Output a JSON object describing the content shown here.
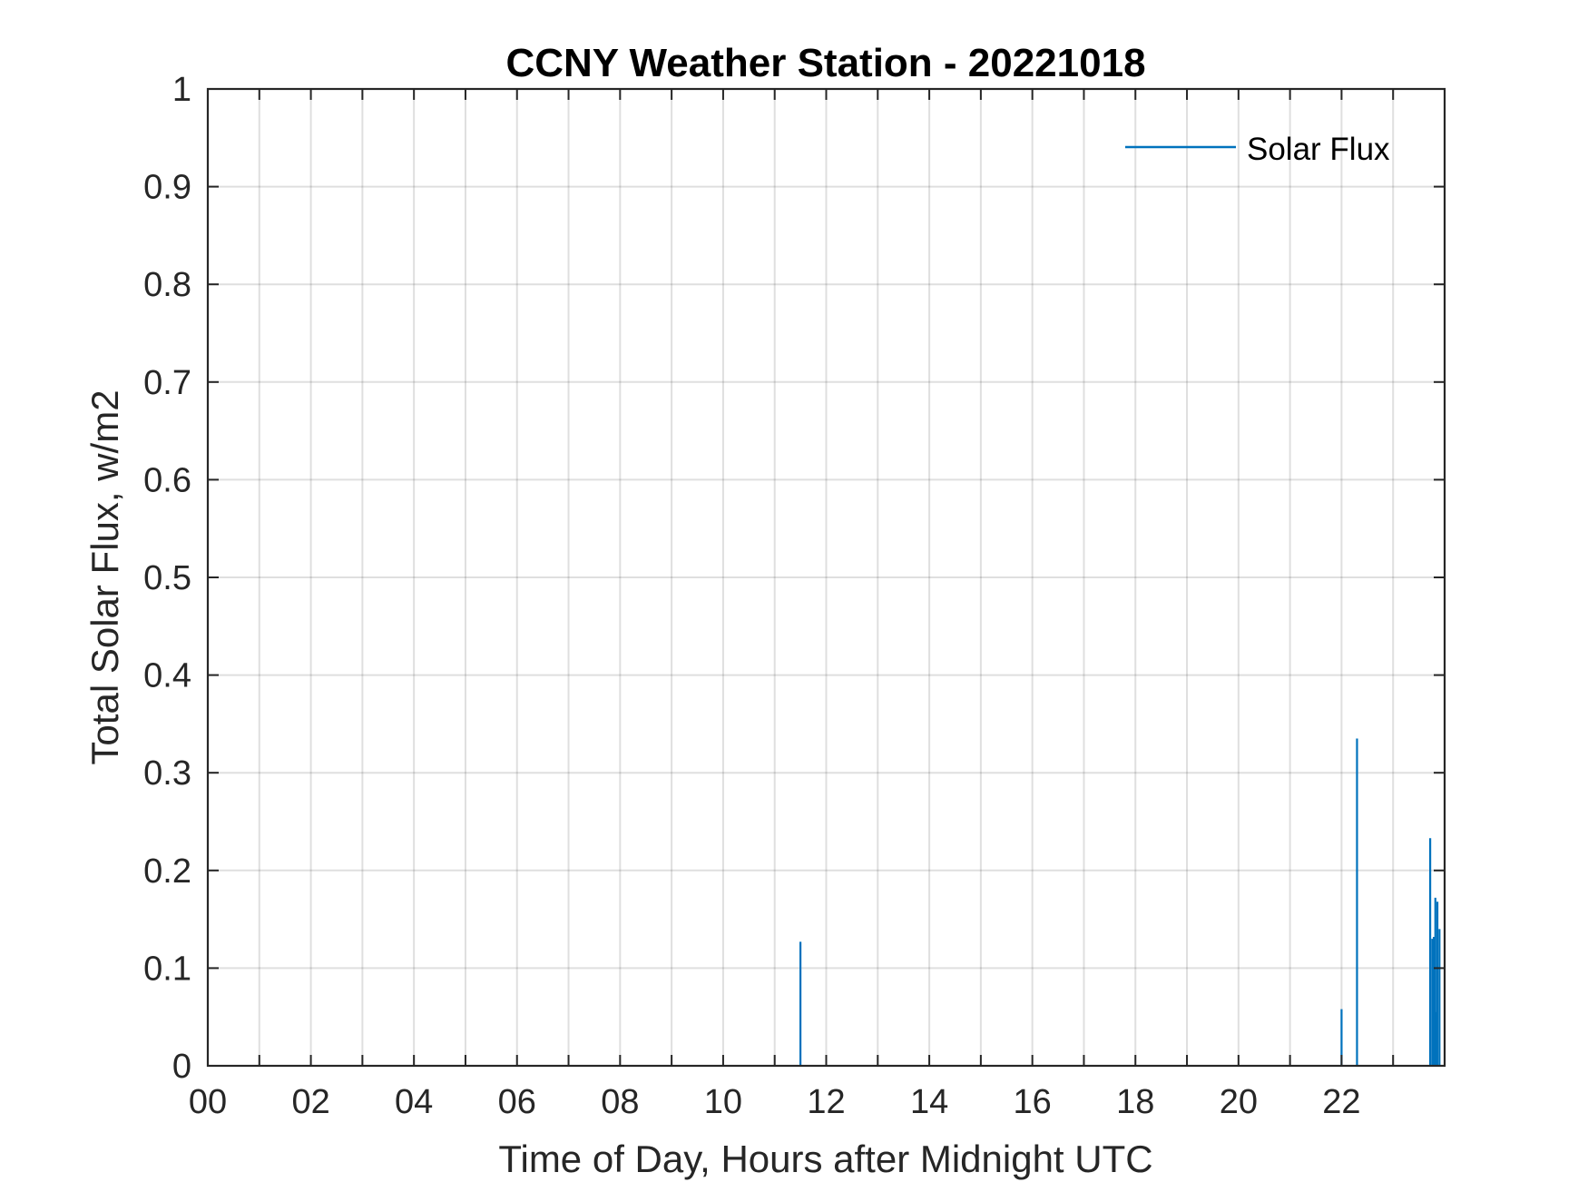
{
  "chart_data": {
    "type": "line",
    "title": "CCNY Weather Station - 20221018",
    "xlabel": "Time of Day, Hours after Midnight UTC",
    "ylabel": "Total Solar Flux, w/m2",
    "xlim": [
      0,
      24
    ],
    "ylim": [
      0,
      1
    ],
    "grid": true,
    "x_ticks": [
      {
        "value": 0,
        "label": "00"
      },
      {
        "value": 2,
        "label": "02"
      },
      {
        "value": 4,
        "label": "04"
      },
      {
        "value": 6,
        "label": "06"
      },
      {
        "value": 8,
        "label": "08"
      },
      {
        "value": 10,
        "label": "10"
      },
      {
        "value": 12,
        "label": "12"
      },
      {
        "value": 14,
        "label": "14"
      },
      {
        "value": 16,
        "label": "16"
      },
      {
        "value": 18,
        "label": "18"
      },
      {
        "value": 20,
        "label": "20"
      },
      {
        "value": 22,
        "label": "22"
      }
    ],
    "x_minor_ticks": [
      1,
      3,
      5,
      7,
      9,
      11,
      13,
      15,
      17,
      19,
      21,
      23
    ],
    "y_ticks": [
      {
        "value": 0,
        "label": "0"
      },
      {
        "value": 0.1,
        "label": "0.1"
      },
      {
        "value": 0.2,
        "label": "0.2"
      },
      {
        "value": 0.3,
        "label": "0.3"
      },
      {
        "value": 0.4,
        "label": "0.4"
      },
      {
        "value": 0.5,
        "label": "0.5"
      },
      {
        "value": 0.6,
        "label": "0.6"
      },
      {
        "value": 0.7,
        "label": "0.7"
      },
      {
        "value": 0.8,
        "label": "0.8"
      },
      {
        "value": 0.9,
        "label": "0.9"
      },
      {
        "value": 1,
        "label": "1"
      }
    ],
    "legend": {
      "position": "top-right",
      "entries": [
        "Solar Flux"
      ]
    },
    "series": [
      {
        "name": "Solar Flux",
        "color": "#0072BD",
        "spikes": [
          {
            "x": 11.5,
            "y": 0.127
          },
          {
            "x": 22.0,
            "y": 0.058
          },
          {
            "x": 22.3,
            "y": 0.335
          },
          {
            "x": 23.72,
            "y": 0.233
          },
          {
            "x": 23.76,
            "y": 0.13
          },
          {
            "x": 23.79,
            "y": 0.132
          },
          {
            "x": 23.82,
            "y": 0.172
          },
          {
            "x": 23.84,
            "y": 0.055
          },
          {
            "x": 23.86,
            "y": 0.168
          },
          {
            "x": 23.9,
            "y": 0.14
          }
        ]
      }
    ]
  }
}
